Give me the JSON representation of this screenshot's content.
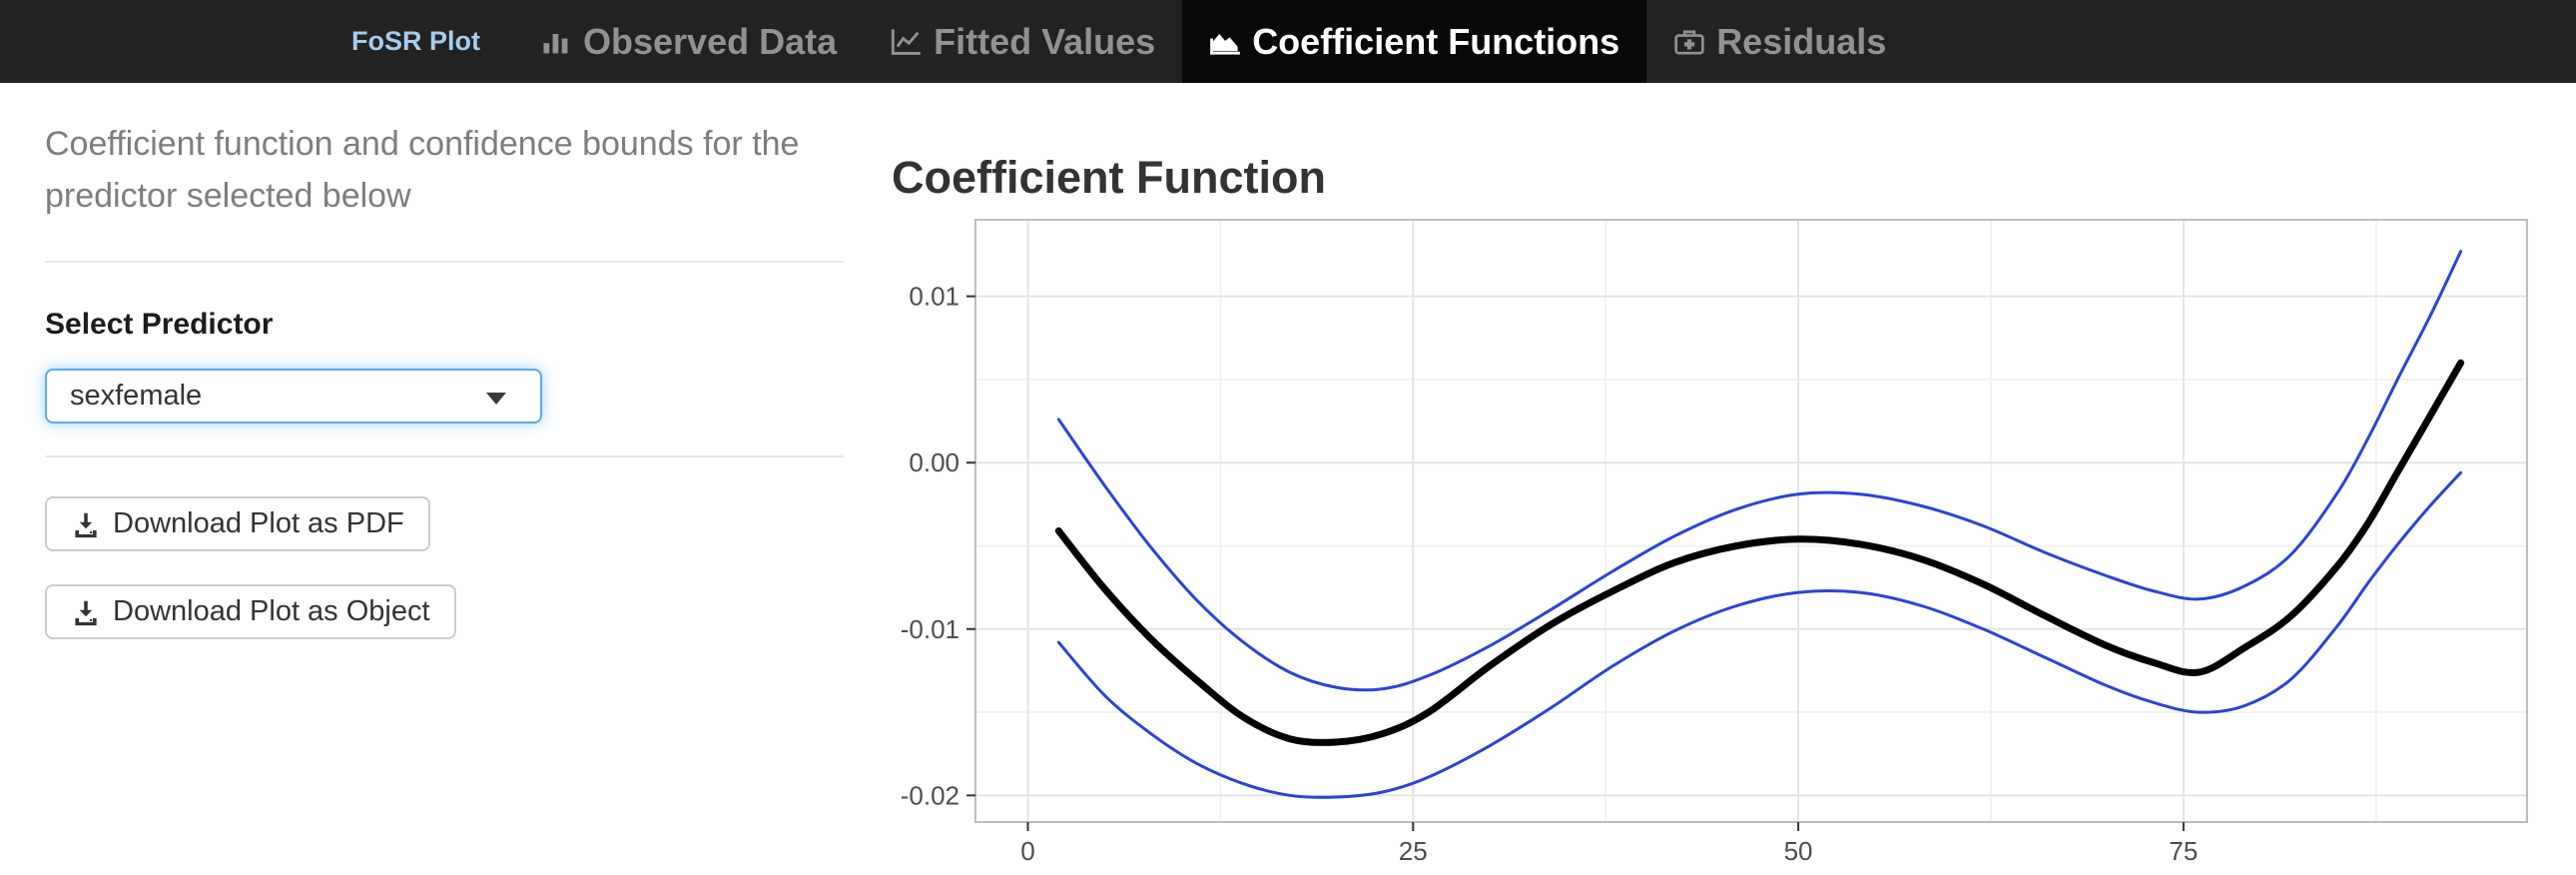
{
  "navbar": {
    "brand": "FoSR Plot",
    "brand_color": "#a7cbec",
    "background": "#222222",
    "active_background": "#080808",
    "tabs": [
      {
        "label": "Observed Data",
        "icon": "bar-chart-icon",
        "active": false
      },
      {
        "label": "Fitted Values",
        "icon": "line-chart-icon",
        "active": false
      },
      {
        "label": "Coefficient Functions",
        "icon": "area-chart-icon",
        "active": true
      },
      {
        "label": "Residuals",
        "icon": "medkit-icon",
        "active": false
      }
    ]
  },
  "sidebar": {
    "help_text": "Coefficient function and confidence bounds for the predictor selected below",
    "predictor_label": "Select Predictor",
    "predictor_value": "sexfemale",
    "buttons": [
      {
        "label": "Download Plot as PDF"
      },
      {
        "label": "Download Plot as Object"
      }
    ]
  },
  "plot": {
    "title": "Coefficient Function"
  },
  "chart_data": {
    "type": "line",
    "title": "Coefficient Function",
    "xlabel": "",
    "ylabel": "",
    "xlim": [
      -3.4,
      97.3
    ],
    "ylim": [
      -0.0216,
      0.0146
    ],
    "x_ticks": [
      0,
      25,
      50,
      75
    ],
    "x_tick_labels": [
      "0",
      "25",
      "50",
      "75"
    ],
    "x_minor_ticks": [
      12.5,
      37.5,
      62.5,
      87.5
    ],
    "y_ticks": [
      0.01,
      0,
      -0.01,
      -0.02
    ],
    "y_tick_labels": [
      "0.01",
      "0.00",
      "-0.01",
      "-0.02"
    ],
    "y_minor_ticks": [
      0.005,
      -0.005,
      -0.015
    ],
    "grid": true,
    "legend_position": "none",
    "colors": {
      "estimate": "#000000",
      "confidence_bound": "#2a43d8"
    },
    "series": [
      {
        "name": "upper confidence bound",
        "color": "#2a43d8",
        "width": 3,
        "x": [
          2,
          5,
          8,
          11,
          14,
          17,
          20,
          23,
          26,
          30,
          34,
          38,
          42,
          46,
          50,
          54,
          58,
          62,
          66,
          70,
          73,
          76,
          79,
          82,
          85,
          87,
          89,
          91,
          93
        ],
        "y": [
          0.0026,
          -0.0014,
          -0.0051,
          -0.0083,
          -0.0108,
          -0.0126,
          -0.0135,
          -0.0136,
          -0.0128,
          -0.011,
          -0.0088,
          -0.0065,
          -0.0044,
          -0.0028,
          -0.0019,
          -0.0019,
          -0.0026,
          -0.0038,
          -0.0054,
          -0.0068,
          -0.0077,
          -0.0082,
          -0.0074,
          -0.0055,
          -0.0018,
          0.0015,
          0.0052,
          0.0088,
          0.0127
        ]
      },
      {
        "name": "coefficient estimate",
        "color": "#000000",
        "width": 7,
        "x": [
          2,
          5,
          8,
          11,
          14,
          17,
          20,
          23,
          26,
          30,
          34,
          38,
          42,
          46,
          50,
          54,
          58,
          62,
          66,
          70,
          73,
          76,
          79,
          82,
          85,
          87,
          89,
          91,
          93
        ],
        "y": [
          -0.0041,
          -0.0076,
          -0.0106,
          -0.0131,
          -0.0153,
          -0.0166,
          -0.0168,
          -0.0163,
          -0.015,
          -0.0122,
          -0.0097,
          -0.0077,
          -0.006,
          -0.005,
          -0.0046,
          -0.0049,
          -0.0058,
          -0.0073,
          -0.0092,
          -0.011,
          -0.012,
          -0.0126,
          -0.0111,
          -0.0092,
          -0.0062,
          -0.0036,
          -0.0004,
          0.0028,
          0.006
        ]
      },
      {
        "name": "lower confidence bound",
        "color": "#2a43d8",
        "width": 3,
        "x": [
          2,
          5,
          8,
          11,
          14,
          17,
          20,
          23,
          26,
          30,
          34,
          38,
          42,
          46,
          50,
          54,
          58,
          62,
          66,
          70,
          73,
          76,
          79,
          82,
          85,
          87,
          89,
          91,
          93
        ],
        "y": [
          -0.0108,
          -0.014,
          -0.0163,
          -0.0181,
          -0.0193,
          -0.02,
          -0.0201,
          -0.0198,
          -0.0189,
          -0.017,
          -0.0147,
          -0.0122,
          -0.0101,
          -0.0086,
          -0.0078,
          -0.0078,
          -0.0086,
          -0.01,
          -0.0117,
          -0.0134,
          -0.0144,
          -0.015,
          -0.0146,
          -0.013,
          -0.0098,
          -0.0072,
          -0.0048,
          -0.0026,
          -0.0006
        ]
      }
    ]
  }
}
